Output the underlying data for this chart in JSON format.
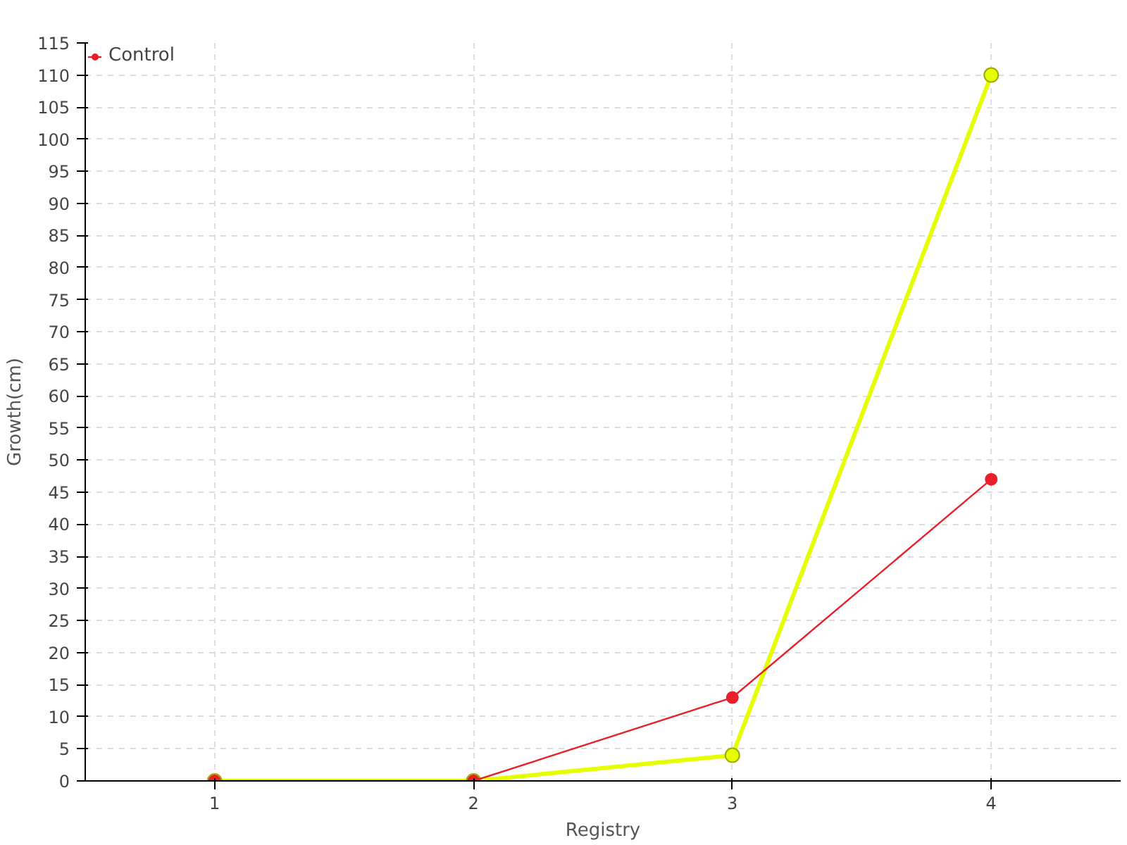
{
  "chart_data": {
    "type": "line",
    "xlabel": "Registry",
    "ylabel": "Growth(cm)",
    "x": [
      1,
      2,
      3,
      4
    ],
    "series": [
      {
        "color": "#e6ff00",
        "values": [
          0,
          0,
          4,
          110
        ]
      },
      {
        "name": "Control",
        "color": "#e8202a",
        "values": [
          0,
          0,
          13,
          47
        ]
      }
    ],
    "xlim": [
      0.5,
      4.5
    ],
    "xticks": [
      1,
      2,
      3,
      4
    ],
    "ylim": [
      0,
      115
    ],
    "yticks": [
      0,
      5,
      10,
      15,
      20,
      25,
      30,
      35,
      40,
      45,
      50,
      55,
      60,
      65,
      70,
      75,
      80,
      85,
      90,
      95,
      100,
      105,
      110,
      115
    ],
    "grid": true,
    "legend": "top left",
    "marker": "circle",
    "line_style": "solid"
  }
}
